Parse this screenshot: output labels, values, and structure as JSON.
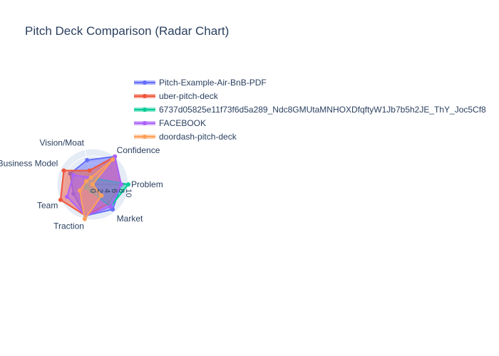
{
  "chart_data": {
    "type": "radar",
    "title": "Pitch Deck Comparison (Radar Chart)",
    "axes": [
      "Problem",
      "Market",
      "Traction",
      "Team",
      "Business Model",
      "Vision/Moat",
      "Confidence"
    ],
    "radial_range": [
      0,
      10
    ],
    "radial_ticks": [
      "0",
      "2",
      "4",
      "6",
      "8",
      "10"
    ],
    "legend_position": "top-right",
    "grid": true,
    "series": [
      {
        "name": "Pitch-Example-Air-BnB-PDF",
        "color": "#636efa",
        "values": [
          8,
          9,
          9,
          6,
          7,
          7,
          10
        ]
      },
      {
        "name": "uber-pitch-deck",
        "color": "#EF553B",
        "values": [
          8,
          7,
          9,
          10,
          9,
          4,
          10
        ]
      },
      {
        "name": "6737d05825e11f73f6d5a289_Ndc8GMUtaMNHOXDfqftyW1Jb7b5h2JE_ThY_Joc5Cf8",
        "color": "#00cc96",
        "values": [
          10,
          8,
          2,
          2,
          2,
          2,
          2
        ]
      },
      {
        "name": "FACEBOOK",
        "color": "#ab63fa",
        "values": [
          8,
          8,
          9,
          8,
          6,
          2,
          10
        ]
      },
      {
        "name": "doordash-pitch-deck",
        "color": "#FFA15A",
        "values": [
          0,
          4,
          10,
          4,
          2,
          2,
          9
        ]
      }
    ]
  }
}
